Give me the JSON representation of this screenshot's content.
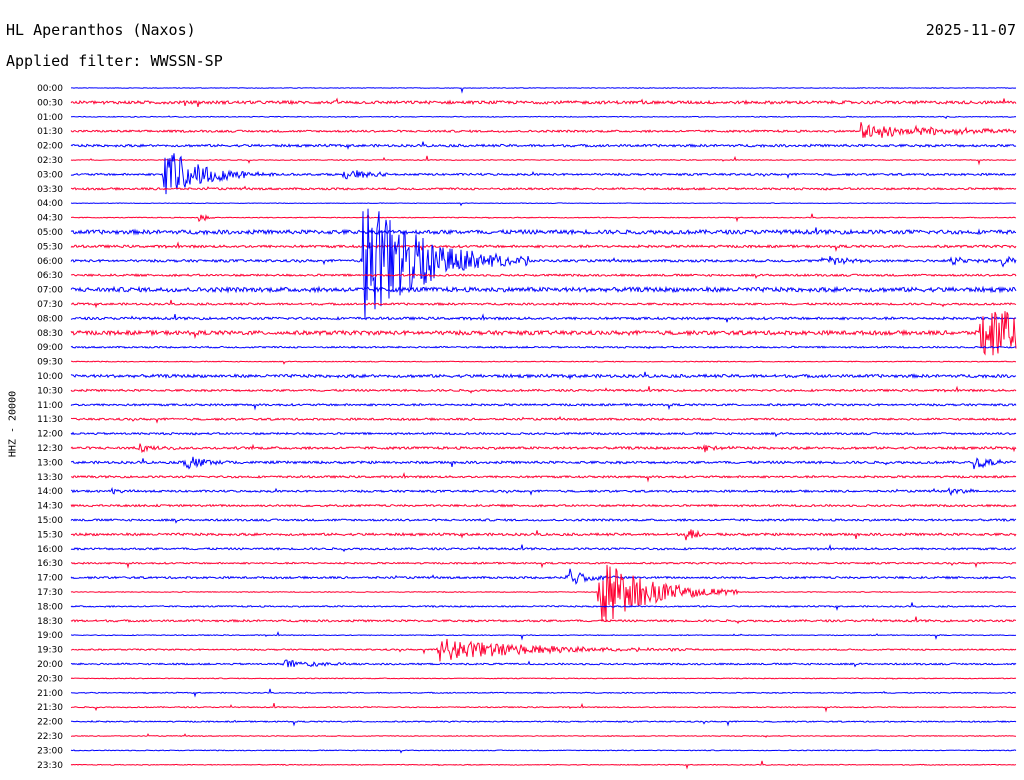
{
  "header": {
    "station": "HL Aperanthos (Naxos)",
    "date": "2025-11-07",
    "filter": "Applied filter: WWSSN-SP"
  },
  "chart_data": {
    "type": "line",
    "title": "HL Aperanthos (Naxos)",
    "ylabel": "HHZ - 20000",
    "xlabel": "",
    "grid": false,
    "colors": [
      "#0000ff",
      "#ff0033"
    ],
    "time_labels": [
      "00:00",
      "00:30",
      "01:00",
      "01:30",
      "02:00",
      "02:30",
      "03:00",
      "03:30",
      "04:00",
      "04:30",
      "05:00",
      "05:30",
      "06:00",
      "06:30",
      "07:00",
      "07:30",
      "08:00",
      "08:30",
      "09:00",
      "09:30",
      "10:00",
      "10:30",
      "11:00",
      "11:30",
      "12:00",
      "12:30",
      "13:00",
      "13:30",
      "14:00",
      "14:30",
      "15:00",
      "15:30",
      "16:00",
      "16:30",
      "17:00",
      "17:30",
      "18:00",
      "18:30",
      "19:00",
      "19:30",
      "20:00",
      "20:30",
      "21:00",
      "21:30",
      "22:00",
      "22:30",
      "23:00",
      "23:30"
    ],
    "noise_level": [
      0.3,
      1.5,
      0.4,
      1.0,
      1.2,
      0.4,
      1.0,
      1.0,
      0.3,
      0.4,
      2.0,
      1.2,
      1.2,
      1.0,
      2.2,
      1.0,
      1.2,
      2.0,
      0.8,
      0.4,
      1.5,
      1.0,
      1.0,
      1.0,
      1.0,
      1.2,
      1.2,
      1.0,
      1.0,
      1.0,
      1.0,
      1.2,
      1.0,
      0.8,
      1.0,
      0.4,
      0.7,
      1.0,
      0.4,
      0.7,
      0.8,
      0.4,
      0.5,
      0.5,
      0.6,
      0.4,
      0.4,
      0.4
    ],
    "events": [
      {
        "row": 3,
        "minute": 25,
        "amp": 9,
        "dur": 2.5
      },
      {
        "row": 6,
        "minute": 2.9,
        "amp": 30,
        "dur": 1.2
      },
      {
        "row": 6,
        "minute": 8.6,
        "amp": 6,
        "dur": 0.8
      },
      {
        "row": 9,
        "minute": 4.0,
        "amp": 8,
        "dur": 0.2
      },
      {
        "row": 12,
        "minute": 9.2,
        "amp": 70,
        "dur": 1.8
      },
      {
        "row": 12,
        "minute": 10.6,
        "amp": 8,
        "dur": 0.6
      },
      {
        "row": 12,
        "minute": 23.8,
        "amp": 6,
        "dur": 0.8
      },
      {
        "row": 12,
        "minute": 27.9,
        "amp": 6,
        "dur": 0.6
      },
      {
        "row": 12,
        "minute": 29.5,
        "amp": 6,
        "dur": 0.4
      },
      {
        "row": 17,
        "minute": 28.8,
        "amp": 28,
        "dur": 2.8
      },
      {
        "row": 25,
        "minute": 2.1,
        "amp": 4,
        "dur": 0.6
      },
      {
        "row": 25,
        "minute": 20.0,
        "amp": 5,
        "dur": 0.4
      },
      {
        "row": 26,
        "minute": 3.5,
        "amp": 10,
        "dur": 0.6
      },
      {
        "row": 26,
        "minute": 28.6,
        "amp": 8,
        "dur": 0.6
      },
      {
        "row": 28,
        "minute": 1.2,
        "amp": 4,
        "dur": 0.4
      },
      {
        "row": 28,
        "minute": 27.8,
        "amp": 4,
        "dur": 0.6
      },
      {
        "row": 31,
        "minute": 19.4,
        "amp": 10,
        "dur": 0.4
      },
      {
        "row": 34,
        "minute": 15.7,
        "amp": 12,
        "dur": 0.6
      },
      {
        "row": 35,
        "minute": 16.7,
        "amp": 38,
        "dur": 1.5
      },
      {
        "row": 39,
        "minute": 11.6,
        "amp": 12,
        "dur": 2.8
      },
      {
        "row": 40,
        "minute": 6.7,
        "amp": 5,
        "dur": 1.2
      }
    ]
  }
}
